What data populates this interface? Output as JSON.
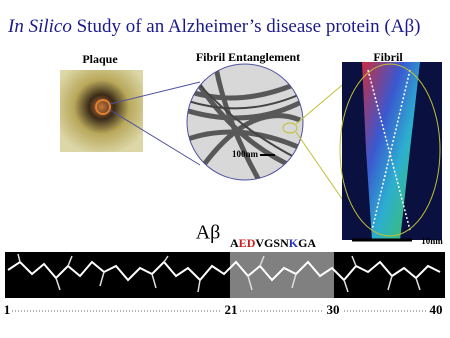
{
  "title": {
    "italic": "In Silico",
    "rest": " Study of an Alzheimer’s disease protein (Aβ)"
  },
  "panels": {
    "plaque": "Plaque",
    "entanglement": "Fibril Entanglement",
    "fibril": "Fibril"
  },
  "scale_bars": {
    "entanglement": "100nm",
    "fibril": "10nm"
  },
  "peptide": {
    "label": "Aβ",
    "sequence": [
      "A",
      "E",
      "D",
      "V",
      "G",
      "S",
      "N",
      "K",
      "G",
      "A"
    ]
  },
  "positions": [
    "1",
    "21",
    "30",
    "40"
  ]
}
